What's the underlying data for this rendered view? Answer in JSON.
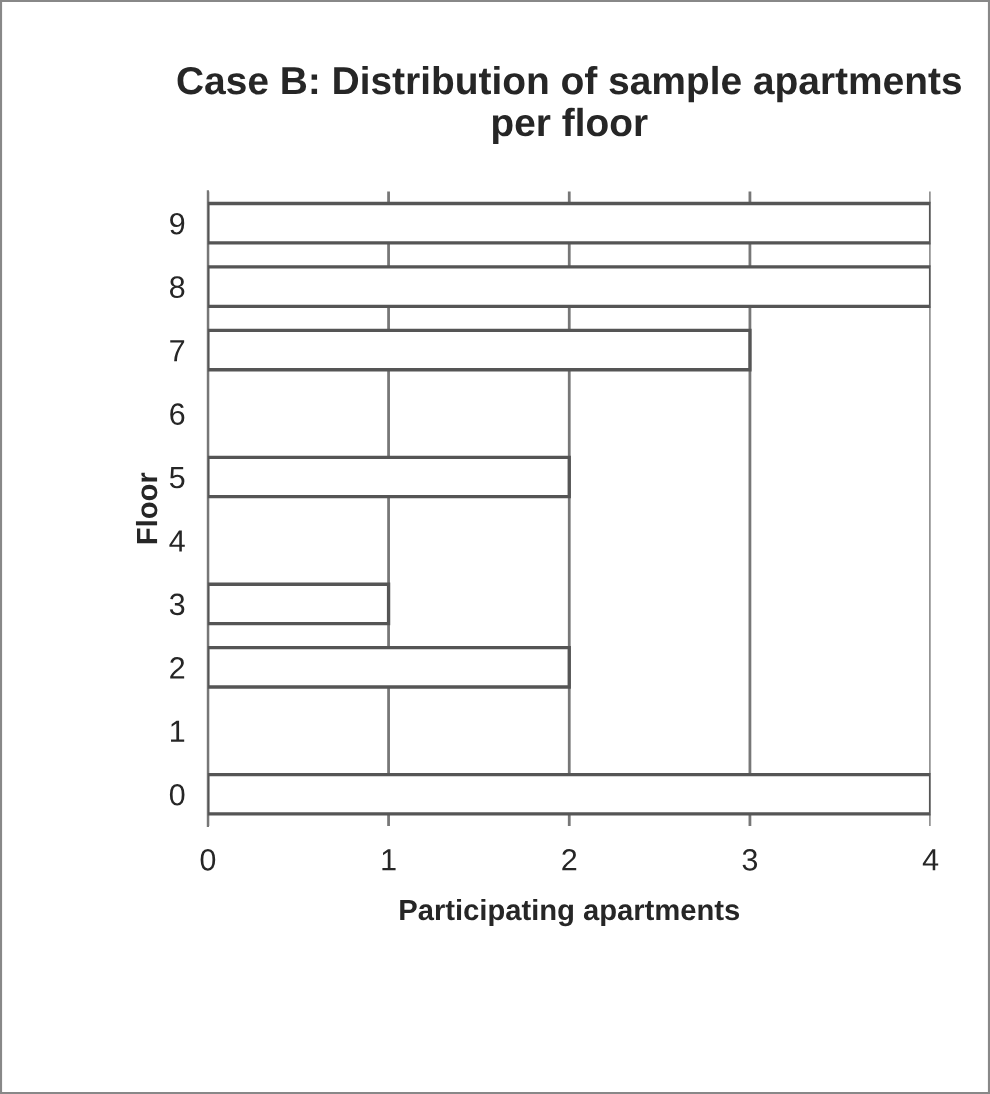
{
  "chart_data": {
    "type": "bar",
    "orientation": "horizontal",
    "title": "Case B: Distribution of sample apartments per floor",
    "xlabel": "Participating apartments",
    "ylabel": "Floor",
    "categories": [
      "9",
      "8",
      "7",
      "6",
      "5",
      "4",
      "3",
      "2",
      "1",
      "0"
    ],
    "values": [
      4,
      4,
      3,
      0,
      2,
      0,
      1,
      2,
      0,
      4
    ],
    "color": "#ffffff",
    "xlim": [
      0,
      4
    ],
    "xticks": [
      0,
      1,
      2,
      3,
      4
    ],
    "grid": "x",
    "legend": false
  }
}
